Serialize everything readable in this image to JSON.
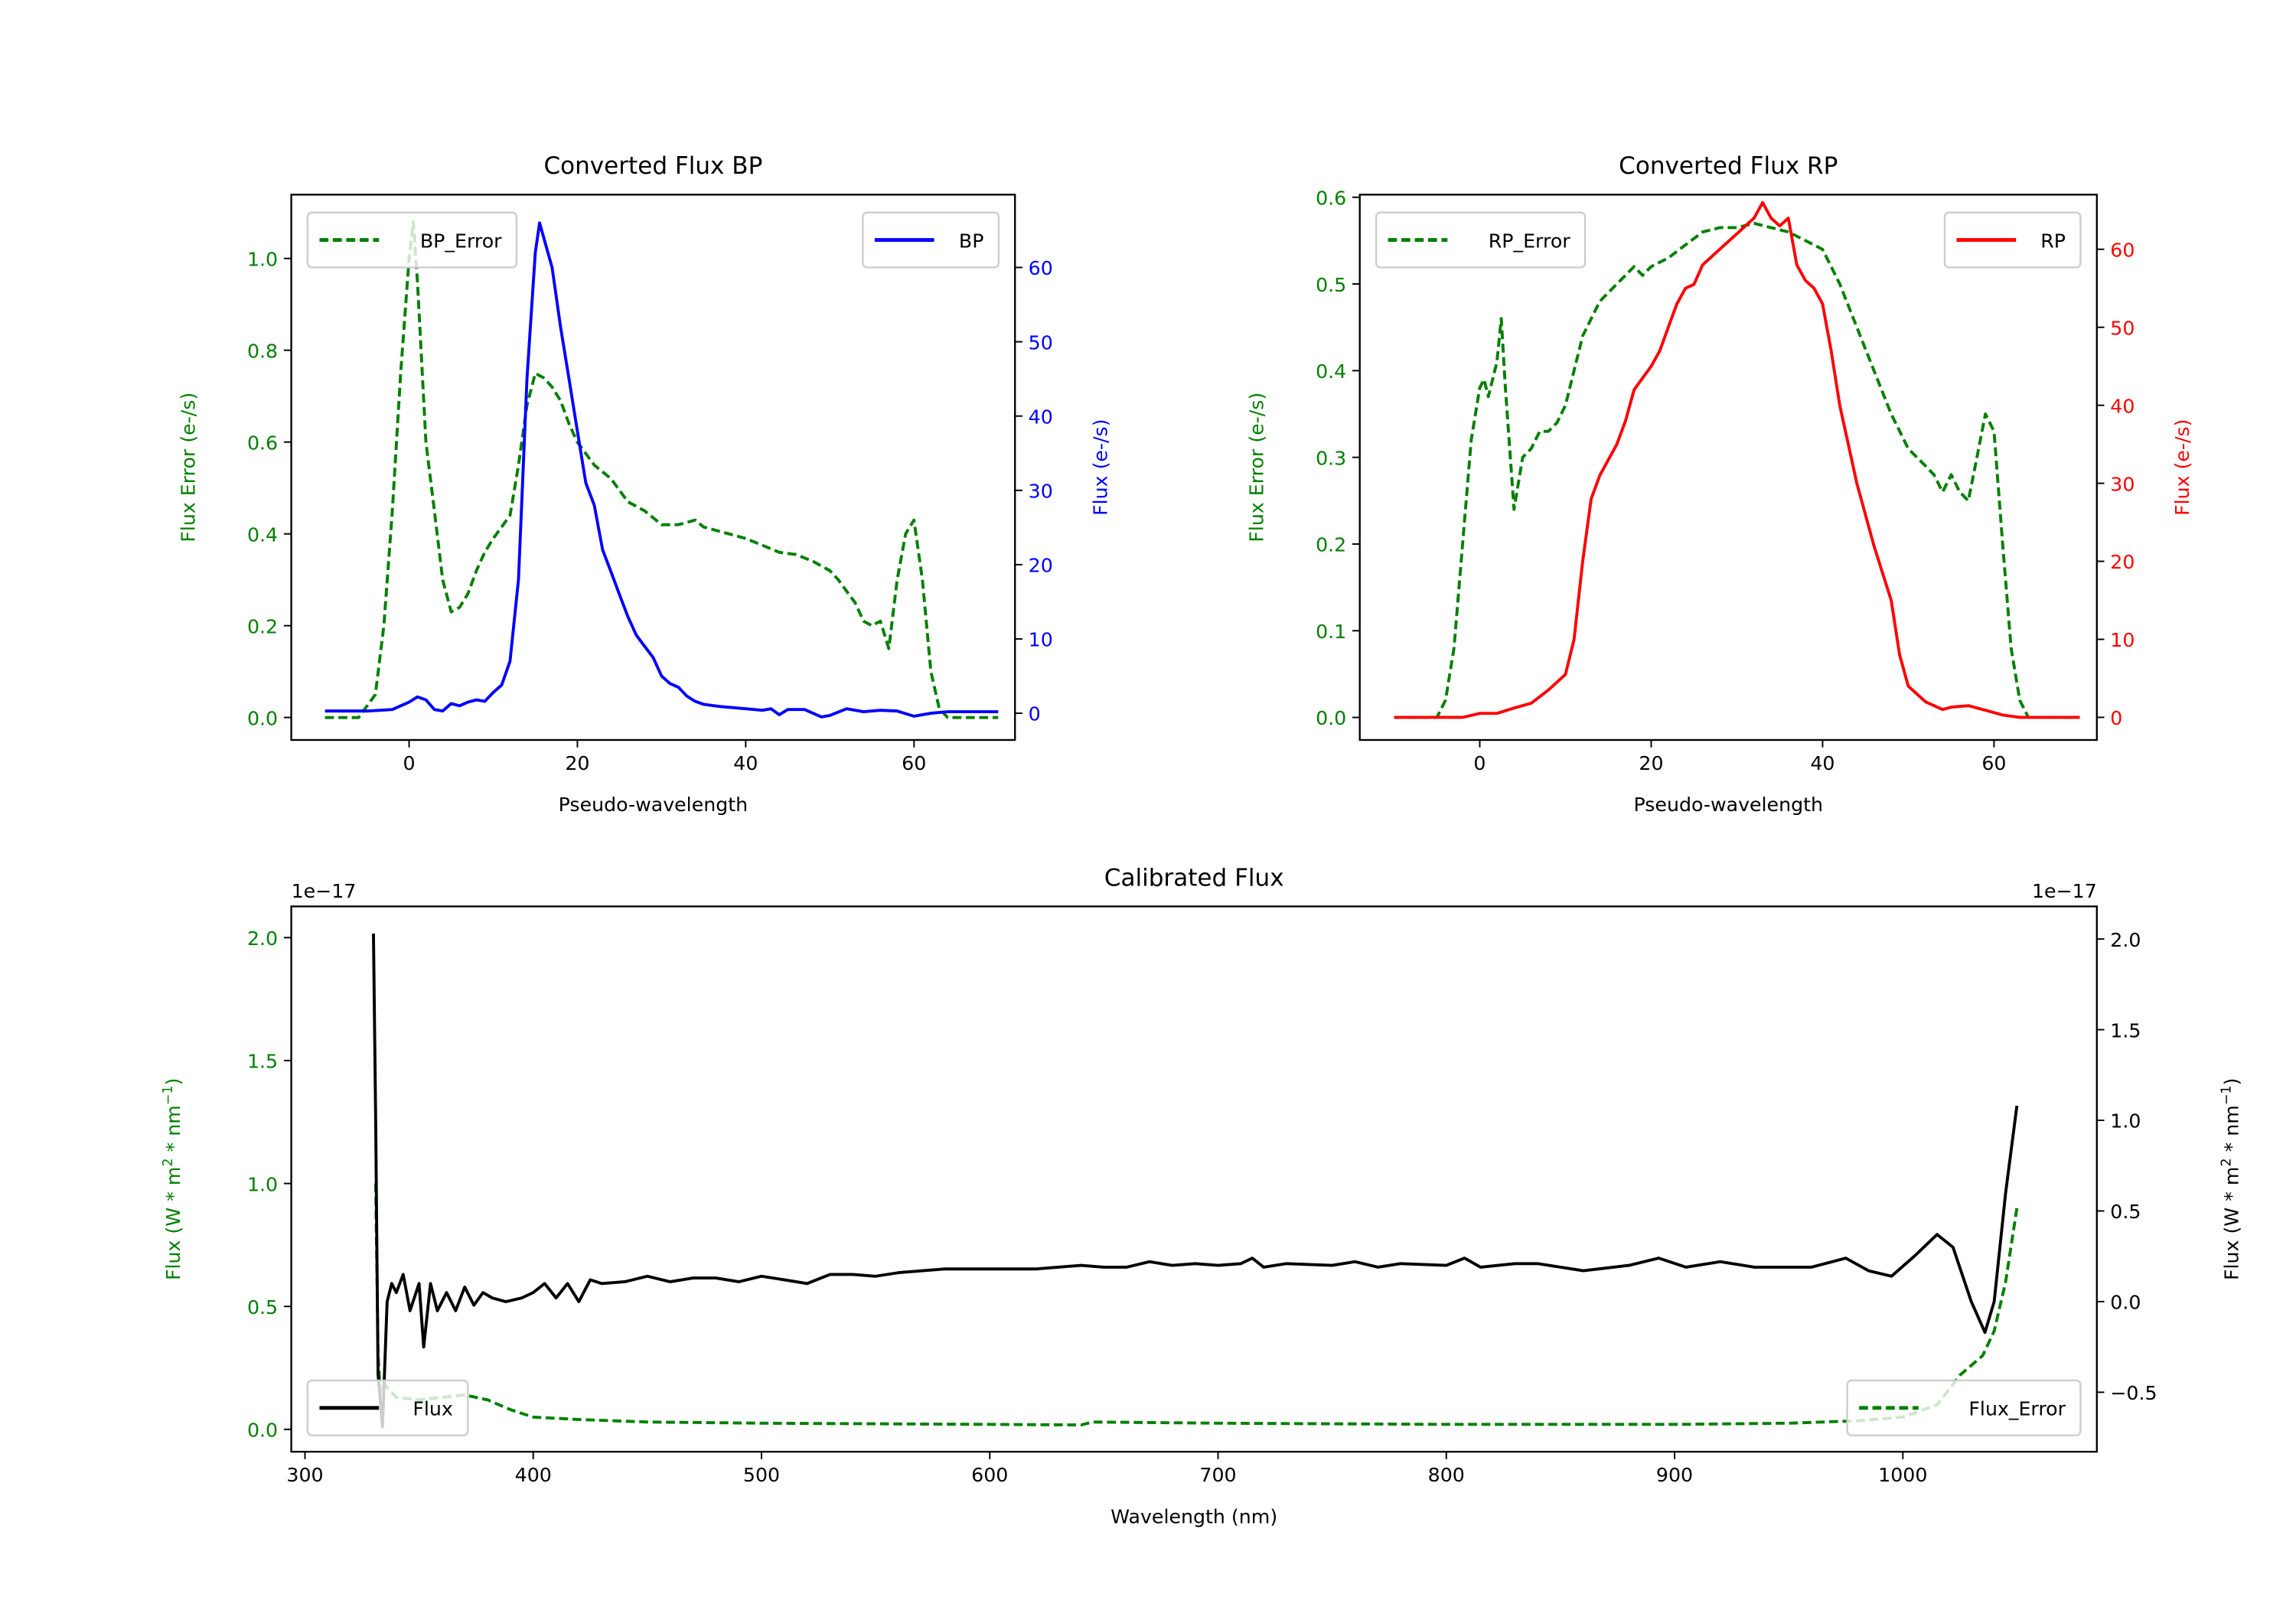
{
  "colors": {
    "green": "#008000",
    "blue": "#0000ff",
    "red": "#ff0000",
    "black": "#000000"
  },
  "chart_data": [
    {
      "type": "line",
      "title": "Converted Flux BP",
      "xlabel": "Pseudo-wavelength",
      "ylabel_left": "Flux Error (e-/s)",
      "ylabel_right": "Flux (e-/s)",
      "xlim": [
        -14,
        72
      ],
      "ylim_left": [
        -0.049,
        1.139
      ],
      "ylim_right": [
        -3.6,
        69.8
      ],
      "xticks": [
        0,
        20,
        40,
        60
      ],
      "xtick_labels": [
        "0",
        "20",
        "40",
        "60"
      ],
      "yticks_left": [
        0,
        0.2,
        0.4,
        0.6,
        0.8,
        1.0
      ],
      "ytick_labels_left": [
        "0.0",
        "0.2",
        "0.4",
        "0.6",
        "0.8",
        "1.0"
      ],
      "yticks_right": [
        0,
        10,
        20,
        30,
        40,
        50,
        60
      ],
      "ytick_labels_right": [
        "0",
        "10",
        "20",
        "30",
        "40",
        "50",
        "60"
      ],
      "series": [
        {
          "name": "BP_Error",
          "axis": "left",
          "color": "#008000",
          "style": "dashed",
          "legend": "top-left",
          "x": [
            -10,
            -6,
            -4,
            -3,
            -2,
            -1,
            0,
            0.5,
            1,
            2,
            3,
            4,
            5,
            6,
            7,
            8,
            9,
            10,
            12,
            13,
            14,
            15,
            16,
            17,
            18,
            19,
            20,
            22,
            24,
            26,
            28,
            30,
            32,
            34,
            35,
            38,
            40,
            42,
            44,
            46,
            48,
            50,
            51,
            53,
            54,
            55,
            56,
            57,
            58,
            59,
            60,
            61,
            62,
            63,
            64,
            70
          ],
          "y": [
            0,
            0,
            0.05,
            0.2,
            0.45,
            0.75,
            1.0,
            1.08,
            0.95,
            0.6,
            0.45,
            0.3,
            0.23,
            0.24,
            0.27,
            0.32,
            0.36,
            0.39,
            0.44,
            0.55,
            0.68,
            0.75,
            0.74,
            0.72,
            0.69,
            0.64,
            0.6,
            0.55,
            0.52,
            0.47,
            0.45,
            0.42,
            0.42,
            0.43,
            0.415,
            0.4,
            0.39,
            0.375,
            0.36,
            0.355,
            0.34,
            0.32,
            0.3,
            0.25,
            0.21,
            0.2,
            0.21,
            0.15,
            0.3,
            0.4,
            0.43,
            0.3,
            0.1,
            0.02,
            0,
            0
          ]
        },
        {
          "name": "BP",
          "axis": "right",
          "color": "#0000ff",
          "style": "solid",
          "legend": "top-right",
          "x": [
            -10,
            -5,
            -2,
            0,
            1,
            2,
            3,
            4,
            5,
            6,
            7,
            8,
            9,
            10,
            11,
            12,
            13,
            14,
            15,
            15.5,
            16,
            17,
            18,
            19,
            20,
            21,
            22,
            23,
            24,
            25,
            26,
            27,
            28,
            29,
            30,
            31,
            32,
            33,
            34,
            35,
            37,
            40,
            42,
            43,
            44,
            45,
            47,
            49,
            50,
            52,
            54,
            56,
            58,
            60,
            62,
            64,
            70
          ],
          "y": [
            0.3,
            0.3,
            0.5,
            1.5,
            2.2,
            1.8,
            0.5,
            0.3,
            1.3,
            1.0,
            1.5,
            1.8,
            1.6,
            2.8,
            3.8,
            7,
            18,
            45,
            62,
            66,
            64,
            60,
            52,
            45,
            38,
            31,
            28,
            22,
            19,
            16,
            13,
            10.5,
            9,
            7.5,
            5,
            4,
            3.5,
            2.3,
            1.6,
            1.2,
            0.9,
            0.6,
            0.4,
            0.6,
            -0.2,
            0.5,
            0.5,
            -0.5,
            -0.3,
            0.6,
            0.2,
            0.4,
            0.3,
            -0.4,
            0,
            0.2,
            0.2
          ]
        }
      ]
    },
    {
      "type": "line",
      "title": "Converted Flux RP",
      "xlabel": "Pseudo-wavelength",
      "ylabel_left": "Flux Error (e-/s)",
      "ylabel_right": "Flux (e-/s)",
      "xlim": [
        -14,
        72
      ],
      "ylim_left": [
        -0.026,
        0.603
      ],
      "ylim_right": [
        -2.9,
        67
      ],
      "xticks": [
        0,
        20,
        40,
        60
      ],
      "xtick_labels": [
        "0",
        "20",
        "40",
        "60"
      ],
      "yticks_left": [
        0,
        0.1,
        0.2,
        0.3,
        0.4,
        0.5,
        0.6
      ],
      "ytick_labels_left": [
        "0.0",
        "0.1",
        "0.2",
        "0.3",
        "0.4",
        "0.5",
        "0.6"
      ],
      "yticks_right": [
        0,
        10,
        20,
        30,
        40,
        50,
        60
      ],
      "ytick_labels_right": [
        "0",
        "10",
        "20",
        "30",
        "40",
        "50",
        "60"
      ],
      "series": [
        {
          "name": "RP_Error",
          "axis": "left",
          "color": "#008000",
          "style": "dashed",
          "legend": "top-left",
          "x": [
            -10,
            -5,
            -4,
            -3,
            -2,
            -1,
            0,
            0.5,
            1,
            2,
            2.5,
            3,
            4,
            5,
            6,
            7,
            8,
            9,
            10,
            11,
            12,
            14,
            16,
            18,
            19,
            20,
            22,
            24,
            26,
            28,
            30,
            32,
            34,
            36,
            38,
            40,
            42,
            44,
            46,
            48,
            50,
            52,
            53,
            54,
            55,
            56,
            57,
            58,
            59,
            60,
            61,
            62,
            63,
            64,
            70
          ],
          "y": [
            0,
            0,
            0.02,
            0.08,
            0.2,
            0.32,
            0.38,
            0.39,
            0.37,
            0.41,
            0.46,
            0.38,
            0.24,
            0.3,
            0.31,
            0.33,
            0.33,
            0.34,
            0.36,
            0.4,
            0.44,
            0.48,
            0.5,
            0.52,
            0.51,
            0.52,
            0.53,
            0.545,
            0.56,
            0.565,
            0.565,
            0.57,
            0.565,
            0.56,
            0.55,
            0.54,
            0.5,
            0.45,
            0.4,
            0.35,
            0.31,
            0.29,
            0.28,
            0.26,
            0.28,
            0.26,
            0.25,
            0.3,
            0.35,
            0.33,
            0.2,
            0.08,
            0.02,
            0,
            0
          ]
        },
        {
          "name": "RP",
          "axis": "right",
          "color": "#ff0000",
          "style": "solid",
          "legend": "top-right",
          "x": [
            -10,
            -2,
            0,
            2,
            4,
            6,
            8,
            10,
            11,
            12,
            13,
            14,
            16,
            17,
            18,
            20,
            21,
            22,
            23,
            24,
            25,
            26,
            28,
            29,
            30,
            31,
            32,
            33,
            34,
            35,
            36,
            37,
            38,
            39,
            40,
            41,
            42,
            44,
            46,
            48,
            49,
            50,
            52,
            54,
            55,
            57,
            59,
            61,
            63,
            70
          ],
          "y": [
            0,
            0,
            0.5,
            0.5,
            1.2,
            1.8,
            3.5,
            5.5,
            10,
            20,
            28,
            31,
            35,
            38,
            42,
            45,
            47,
            50,
            53,
            55,
            55.5,
            58,
            60,
            61,
            62,
            63,
            64,
            66,
            64,
            63,
            64,
            58,
            56,
            55,
            53,
            47,
            40,
            30,
            22,
            15,
            8,
            4,
            2,
            1,
            1.3,
            1.5,
            0.9,
            0.3,
            0,
            0
          ]
        }
      ]
    },
    {
      "type": "line",
      "title": "Calibrated Flux",
      "xlabel": "Wavelength (nm)",
      "ylabel_left": "Flux (W * m$^2$ * nm$^{-1}$)",
      "ylabel_right": "Flux (W * m$^2$ * nm$^{-1}$)",
      "offset_left": "1e−17",
      "offset_right": "1e−17",
      "xlim": [
        294,
        1085
      ],
      "ylim_left": [
        -0.091,
        2.127
      ],
      "ylim_right": [
        -0.828,
        2.18
      ],
      "xticks": [
        300,
        400,
        500,
        600,
        700,
        800,
        900,
        1000
      ],
      "xtick_labels": [
        "300",
        "400",
        "500",
        "600",
        "700",
        "800",
        "900",
        "1000"
      ],
      "yticks_left": [
        0,
        0.5,
        1.0,
        1.5,
        2.0
      ],
      "ytick_labels_left": [
        "0.0",
        "0.5",
        "1.0",
        "1.5",
        "2.0"
      ],
      "yticks_right": [
        -0.5,
        0,
        0.5,
        1.0,
        1.5,
        2.0
      ],
      "ytick_labels_right": [
        "−0.5",
        "0.0",
        "0.5",
        "1.0",
        "1.5",
        "2.0"
      ],
      "series": [
        {
          "name": "Flux",
          "axis": "right",
          "color": "#000000",
          "style": "solid",
          "legend": "bottom-left",
          "x": [
            330,
            331,
            332,
            334,
            336,
            338,
            340,
            343,
            346,
            350,
            352,
            355,
            358,
            362,
            366,
            370,
            374,
            378,
            382,
            388,
            395,
            400,
            405,
            410,
            415,
            420,
            425,
            430,
            440,
            450,
            460,
            470,
            480,
            490,
            500,
            510,
            520,
            530,
            540,
            550,
            560,
            580,
            600,
            620,
            640,
            650,
            660,
            670,
            680,
            690,
            700,
            710,
            715,
            720,
            730,
            750,
            760,
            770,
            780,
            800,
            808,
            815,
            830,
            840,
            860,
            880,
            893,
            905,
            920,
            935,
            950,
            960,
            975,
            985,
            995,
            1005,
            1015,
            1022,
            1030,
            1036,
            1040,
            1045,
            1050
          ],
          "y": [
            2.03,
            1.0,
            -0.4,
            -0.69,
            0.0,
            0.1,
            0.05,
            0.15,
            -0.05,
            0.1,
            -0.25,
            0.1,
            -0.05,
            0.05,
            -0.05,
            0.08,
            -0.02,
            0.05,
            0.02,
            0.0,
            0.02,
            0.05,
            0.1,
            0.02,
            0.1,
            0.0,
            0.12,
            0.1,
            0.11,
            0.14,
            0.11,
            0.13,
            0.13,
            0.11,
            0.14,
            0.12,
            0.1,
            0.15,
            0.15,
            0.14,
            0.16,
            0.18,
            0.18,
            0.18,
            0.2,
            0.19,
            0.19,
            0.22,
            0.2,
            0.21,
            0.2,
            0.21,
            0.24,
            0.19,
            0.21,
            0.2,
            0.22,
            0.19,
            0.21,
            0.2,
            0.24,
            0.19,
            0.21,
            0.21,
            0.17,
            0.2,
            0.24,
            0.19,
            0.22,
            0.19,
            0.19,
            0.19,
            0.24,
            0.17,
            0.14,
            0.25,
            0.37,
            0.3,
            0.0,
            -0.17,
            0.0,
            0.6,
            1.08
          ]
        },
        {
          "name": "Flux_Error",
          "axis": "left",
          "color": "#008000",
          "style": "dashed",
          "legend": "bottom-right",
          "x": [
            331,
            332,
            333,
            335,
            340,
            350,
            360,
            370,
            380,
            390,
            400,
            420,
            450,
            500,
            600,
            640,
            645,
            700,
            800,
            900,
            950,
            980,
            1000,
            1015,
            1025,
            1035,
            1040,
            1045,
            1050
          ],
          "y": [
            1.0,
            0.3,
            0.15,
            0.18,
            0.13,
            0.12,
            0.13,
            0.14,
            0.12,
            0.08,
            0.05,
            0.04,
            0.03,
            0.025,
            0.02,
            0.018,
            0.03,
            0.025,
            0.02,
            0.02,
            0.025,
            0.035,
            0.05,
            0.1,
            0.22,
            0.3,
            0.4,
            0.6,
            0.9
          ]
        }
      ]
    }
  ]
}
